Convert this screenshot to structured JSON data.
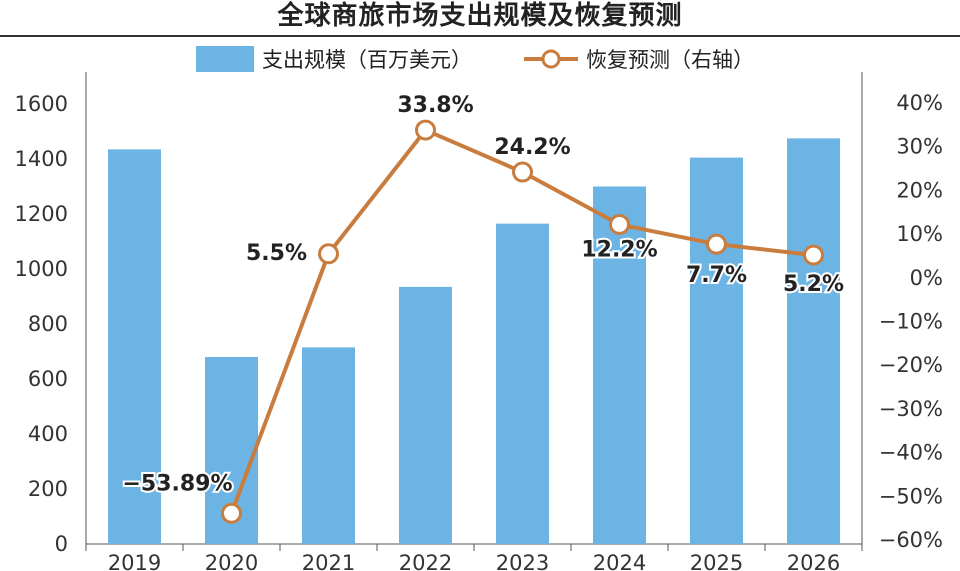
{
  "chart_data": {
    "type": "bar",
    "title": "全球商旅市场支出规模及恢复预测",
    "categories": [
      "2019",
      "2020",
      "2021",
      "2022",
      "2023",
      "2024",
      "2025",
      "2026"
    ],
    "series": [
      {
        "name": "支出规模（百万美元）",
        "type": "bar",
        "axis": "left",
        "color": "#6cb4e4",
        "values": [
          1435,
          680,
          715,
          935,
          1165,
          1300,
          1405,
          1475
        ]
      },
      {
        "name": "恢复预测（右轴）",
        "type": "line",
        "axis": "right",
        "color": "#c87d3e",
        "values": [
          -53.89,
          5.5,
          33.8,
          24.2,
          12.2,
          7.7,
          5.2
        ],
        "x": [
          "2020",
          "2021",
          "2022",
          "2023",
          "2024",
          "2025",
          "2026"
        ],
        "labels": [
          "−53.89%",
          "5.5%",
          "33.8%",
          "24.2%",
          "12.2%",
          "7.7%",
          "5.2%"
        ]
      }
    ],
    "y_left": {
      "ylim": [
        0,
        1600
      ],
      "ticks": [
        "0",
        "200",
        "400",
        "600",
        "800",
        "1000",
        "1200",
        "1400",
        "1600"
      ]
    },
    "y_right": {
      "ylim": [
        -60,
        40
      ],
      "ticks": [
        "−60%",
        "−50%",
        "−40%",
        "−30%",
        "−20%",
        "−10%",
        "0%",
        "10%",
        "20%",
        "30%",
        "40%"
      ]
    },
    "legend_position": "top-center",
    "grid": false
  }
}
